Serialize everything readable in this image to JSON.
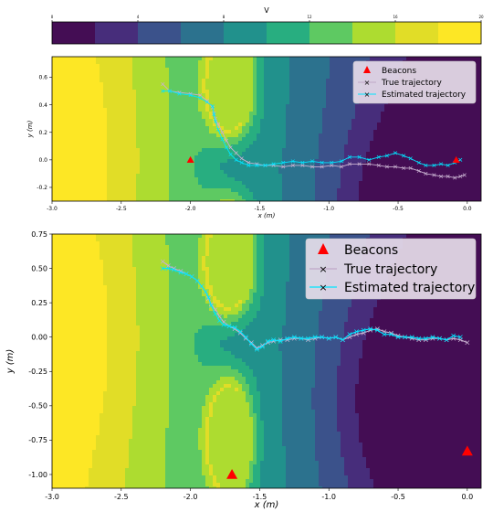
{
  "colorbar": {
    "label": "V",
    "ticks": [
      0,
      4,
      8,
      12,
      16,
      20
    ],
    "vmin": 0,
    "vmax": 20,
    "levels": [
      0,
      2,
      4,
      6,
      8,
      10,
      12,
      14,
      16,
      18,
      20
    ],
    "colors": [
      "#440d54",
      "#472d7b",
      "#3b528b",
      "#2c728e",
      "#21918c",
      "#28ae80",
      "#5ec962",
      "#addc30",
      "#e1dd27",
      "#fde725"
    ]
  },
  "chart_data": [
    {
      "type": "line",
      "xlabel": "x (m)",
      "ylabel": "y (m)",
      "xlim": [
        -3.0,
        0.1
      ],
      "ylim": [
        -0.3,
        0.75
      ],
      "xticks": [
        "-3.0",
        "-2.5",
        "-2.0",
        "-1.5",
        "-1.0",
        "-0.5",
        "0.0"
      ],
      "xtick_values": [
        -3.0,
        -2.5,
        -2.0,
        -1.5,
        -1.0,
        -0.5,
        0.0
      ],
      "yticks": [
        "-0.2",
        "0.0",
        "0.2",
        "0.4",
        "0.6"
      ],
      "ytick_values": [
        -0.2,
        0.0,
        0.2,
        0.4,
        0.6
      ],
      "legend": {
        "placement": "top-right",
        "entries": [
          "Beacons",
          "True trajectory",
          "Estimated trajectory"
        ]
      },
      "beacons": {
        "x": [
          -2.0,
          -0.08
        ],
        "y": [
          0.0,
          0.0
        ]
      },
      "series": [
        {
          "name": "True trajectory",
          "x": [
            -2.2,
            -2.15,
            -2.08,
            -2.0,
            -1.93,
            -1.88,
            -1.84,
            -1.83,
            -1.82,
            -1.8,
            -1.77,
            -1.74,
            -1.71,
            -1.67,
            -1.63,
            -1.58,
            -1.52,
            -1.46,
            -1.4,
            -1.33,
            -1.26,
            -1.19,
            -1.12,
            -1.05,
            -0.98,
            -0.91,
            -0.85,
            -0.78,
            -0.71,
            -0.64,
            -0.58,
            -0.52,
            -0.46,
            -0.41,
            -0.35,
            -0.3,
            -0.24,
            -0.19,
            -0.14,
            -0.09,
            -0.05,
            -0.02
          ],
          "y": [
            0.55,
            0.5,
            0.49,
            0.48,
            0.47,
            0.43,
            0.38,
            0.34,
            0.3,
            0.26,
            0.2,
            0.14,
            0.09,
            0.05,
            0.01,
            -0.02,
            -0.03,
            -0.04,
            -0.04,
            -0.05,
            -0.04,
            -0.04,
            -0.05,
            -0.05,
            -0.04,
            -0.05,
            -0.03,
            -0.03,
            -0.03,
            -0.04,
            -0.05,
            -0.05,
            -0.06,
            -0.06,
            -0.08,
            -0.1,
            -0.11,
            -0.12,
            -0.12,
            -0.13,
            -0.12,
            -0.11
          ]
        },
        {
          "name": "Estimated trajectory",
          "x": [
            -2.2,
            -2.15,
            -2.08,
            -2.0,
            -1.93,
            -1.88,
            -1.84,
            -1.83,
            -1.82,
            -1.8,
            -1.77,
            -1.74,
            -1.71,
            -1.67,
            -1.63,
            -1.58,
            -1.52,
            -1.46,
            -1.4,
            -1.33,
            -1.26,
            -1.19,
            -1.12,
            -1.05,
            -0.98,
            -0.91,
            -0.85,
            -0.78,
            -0.71,
            -0.64,
            -0.58,
            -0.52,
            -0.46,
            -0.41,
            -0.35,
            -0.3,
            -0.24,
            -0.19,
            -0.14,
            -0.09,
            -0.05
          ],
          "y": [
            0.5,
            0.5,
            0.48,
            0.47,
            0.45,
            0.42,
            0.39,
            0.33,
            0.28,
            0.22,
            0.15,
            0.09,
            0.04,
            0.0,
            -0.02,
            -0.04,
            -0.04,
            -0.04,
            -0.03,
            -0.02,
            -0.01,
            -0.02,
            -0.01,
            -0.02,
            -0.02,
            -0.01,
            0.02,
            0.02,
            0.0,
            0.02,
            0.03,
            0.05,
            0.03,
            0.01,
            -0.02,
            -0.04,
            -0.04,
            -0.03,
            -0.04,
            -0.02,
            0.0
          ]
        }
      ]
    },
    {
      "type": "line",
      "xlabel": "x (m)",
      "ylabel": "y (m)",
      "xlim": [
        -3.0,
        0.1
      ],
      "ylim": [
        -1.1,
        0.75
      ],
      "xticks": [
        "-3.0",
        "-2.5",
        "-2.0",
        "-1.5",
        "-1.0",
        "-0.5",
        "0.0"
      ],
      "xtick_values": [
        -3.0,
        -2.5,
        -2.0,
        -1.5,
        -1.0,
        -0.5,
        0.0
      ],
      "yticks": [
        "0.75",
        "0.50",
        "0.25",
        "0.00",
        "-0.25",
        "-0.50",
        "-0.75",
        "-1.00"
      ],
      "ytick_values": [
        0.75,
        0.5,
        0.25,
        0.0,
        -0.25,
        -0.5,
        -0.75,
        -1.0
      ],
      "legend": {
        "placement": "top-right",
        "entries": [
          "Beacons",
          "True trajectory",
          "Estimated trajectory"
        ]
      },
      "beacons": {
        "x": [
          -1.7,
          0.0
        ],
        "y": [
          -1.0,
          -0.83
        ]
      },
      "series": [
        {
          "name": "True trajectory",
          "x": [
            -2.2,
            -2.16,
            -2.12,
            -2.07,
            -2.03,
            -1.99,
            -1.95,
            -1.92,
            -1.89,
            -1.87,
            -1.85,
            -1.82,
            -1.79,
            -1.76,
            -1.72,
            -1.68,
            -1.64,
            -1.6,
            -1.56,
            -1.52,
            -1.48,
            -1.44,
            -1.4,
            -1.35,
            -1.3,
            -1.25,
            -1.2,
            -1.15,
            -1.1,
            -1.05,
            -1.0,
            -0.95,
            -0.9,
            -0.85,
            -0.8,
            -0.75,
            -0.7,
            -0.65,
            -0.6,
            -0.55,
            -0.5,
            -0.45,
            -0.4,
            -0.35,
            -0.3,
            -0.25,
            -0.2,
            -0.15,
            -0.1,
            -0.05,
            0.0
          ],
          "y": [
            0.55,
            0.52,
            0.5,
            0.48,
            0.46,
            0.44,
            0.41,
            0.37,
            0.33,
            0.28,
            0.24,
            0.2,
            0.15,
            0.11,
            0.08,
            0.06,
            0.03,
            -0.01,
            -0.04,
            -0.08,
            -0.06,
            -0.04,
            -0.03,
            -0.02,
            -0.02,
            -0.01,
            -0.01,
            -0.02,
            -0.01,
            0.0,
            -0.01,
            0.0,
            -0.02,
            0.0,
            0.02,
            0.03,
            0.05,
            0.06,
            0.04,
            0.03,
            0.01,
            0.0,
            -0.01,
            -0.02,
            -0.02,
            -0.01,
            -0.01,
            -0.02,
            -0.01,
            -0.02,
            -0.04
          ]
        },
        {
          "name": "Estimated trajectory",
          "x": [
            -2.2,
            -2.16,
            -2.12,
            -2.07,
            -2.03,
            -1.99,
            -1.95,
            -1.92,
            -1.89,
            -1.87,
            -1.85,
            -1.82,
            -1.79,
            -1.76,
            -1.72,
            -1.68,
            -1.64,
            -1.6,
            -1.56,
            -1.52,
            -1.48,
            -1.44,
            -1.4,
            -1.35,
            -1.3,
            -1.25,
            -1.2,
            -1.15,
            -1.1,
            -1.05,
            -1.0,
            -0.95,
            -0.9,
            -0.85,
            -0.8,
            -0.75,
            -0.7,
            -0.65,
            -0.6,
            -0.55,
            -0.5,
            -0.45,
            -0.4,
            -0.35,
            -0.3,
            -0.25,
            -0.2,
            -0.15,
            -0.1,
            -0.05
          ],
          "y": [
            0.5,
            0.5,
            0.49,
            0.47,
            0.46,
            0.44,
            0.41,
            0.37,
            0.33,
            0.29,
            0.23,
            0.17,
            0.12,
            0.09,
            0.08,
            0.07,
            0.04,
            0.0,
            -0.05,
            -0.09,
            -0.07,
            -0.03,
            -0.02,
            -0.03,
            -0.01,
            0.0,
            -0.01,
            -0.01,
            0.0,
            0.0,
            -0.01,
            0.0,
            -0.02,
            0.02,
            0.04,
            0.05,
            0.06,
            0.05,
            0.02,
            0.02,
            0.0,
            0.0,
            0.0,
            -0.01,
            -0.01,
            0.0,
            -0.01,
            -0.02,
            0.01,
            0.0
          ]
        }
      ]
    }
  ]
}
